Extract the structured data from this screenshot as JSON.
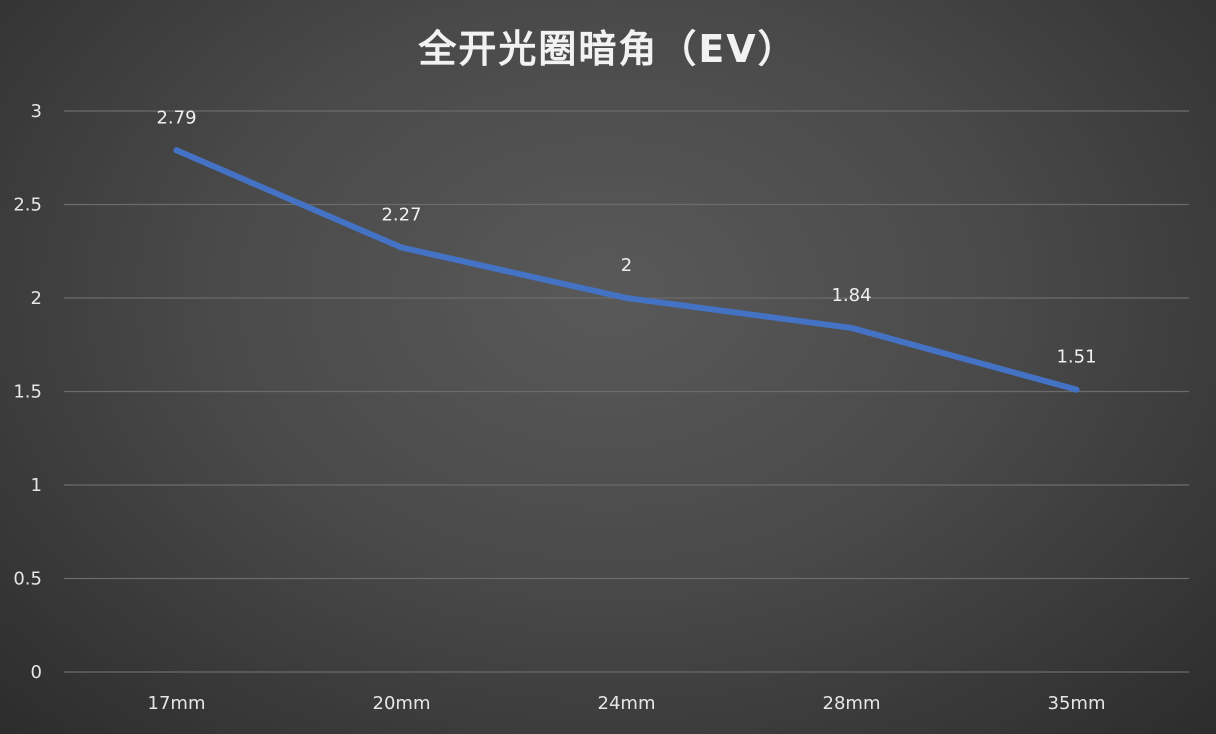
{
  "chart_data": {
    "type": "line",
    "title": "全开光圈暗角（EV）",
    "categories": [
      "17mm",
      "20mm",
      "24mm",
      "28mm",
      "35mm"
    ],
    "series": [
      {
        "values": [
          2.79,
          2.27,
          2,
          1.84,
          1.51
        ],
        "data_labels": [
          "2.79",
          "2.27",
          "2",
          "1.84",
          "1.51"
        ],
        "color": "#4472c4"
      }
    ],
    "y_ticks": [
      "0",
      "0.5",
      "1",
      "1.5",
      "2",
      "2.5",
      "3"
    ],
    "ylim": [
      0,
      3
    ],
    "grid": true,
    "legend": "none",
    "background_color": "#4a4a4a",
    "gridline_color": "#6b6b6b",
    "text_color": "#e6e6e6"
  }
}
